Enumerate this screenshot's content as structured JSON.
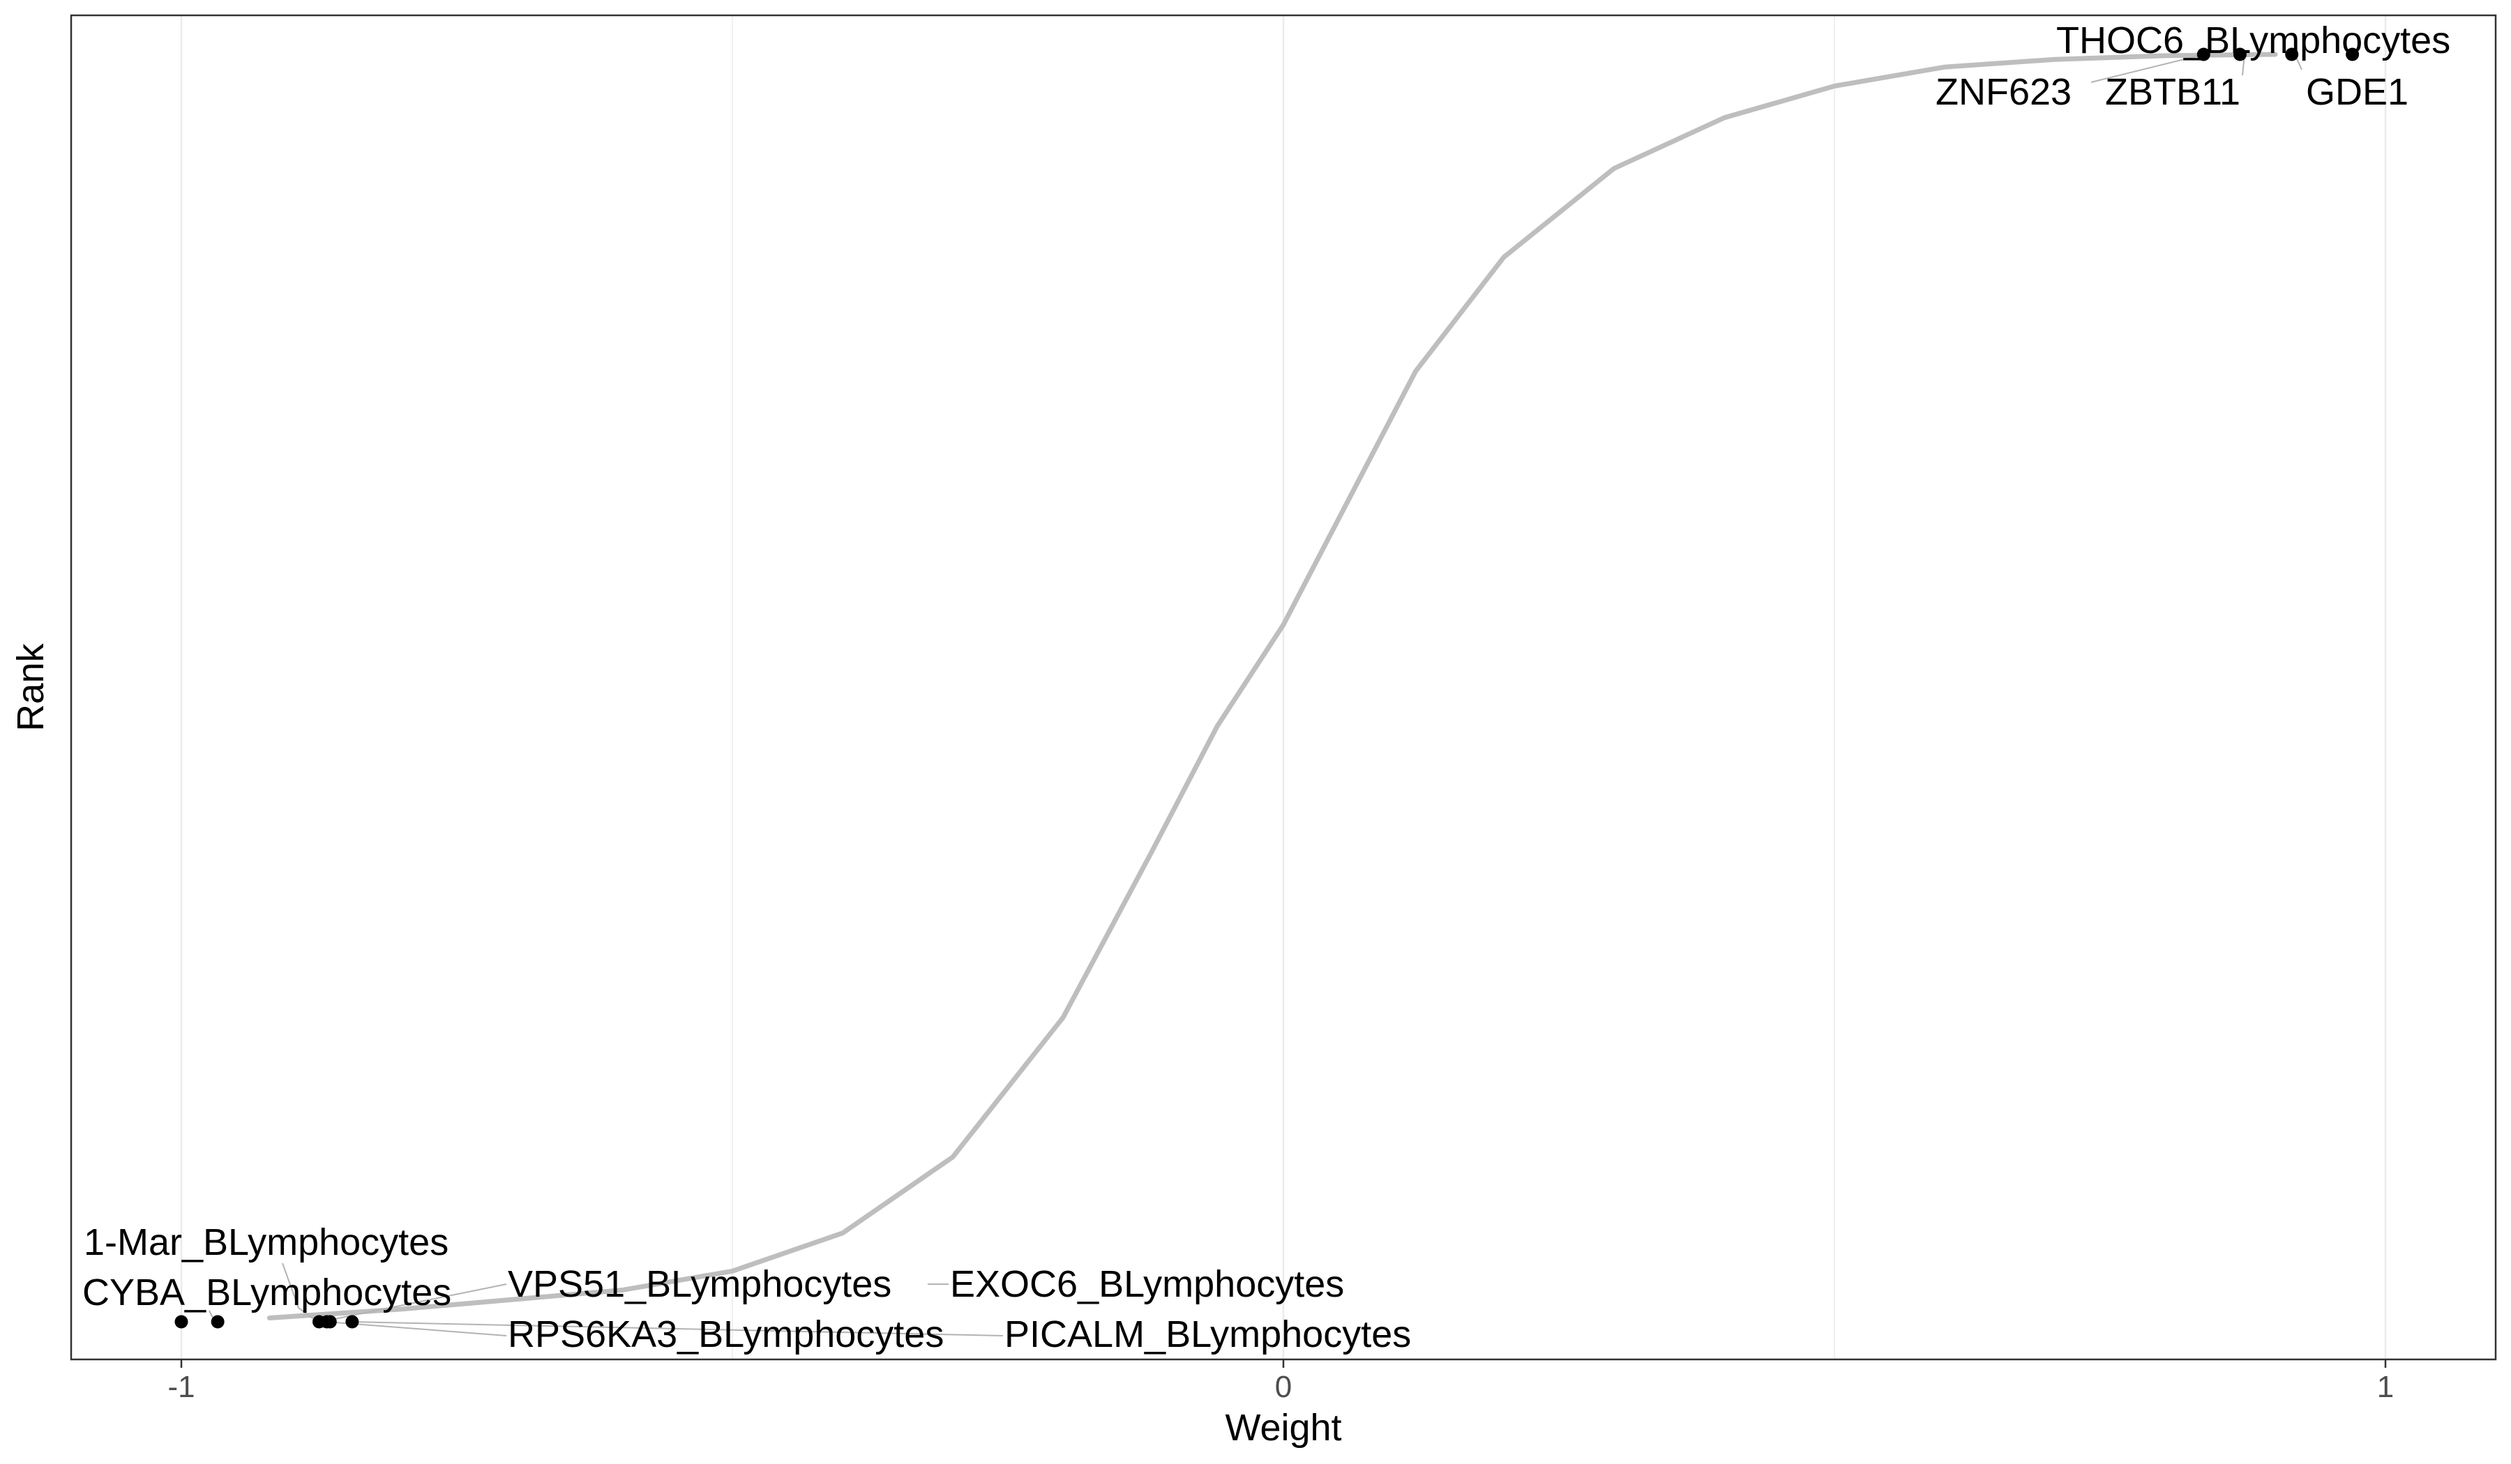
{
  "chart_data": {
    "type": "scatter",
    "title": "",
    "xlabel": "Weight",
    "ylabel": "Rank",
    "xlim": [
      -1.1,
      1.1
    ],
    "x_ticks": [
      {
        "value": -1,
        "label": "-1"
      },
      {
        "value": 0,
        "label": "0"
      },
      {
        "value": 1,
        "label": "1"
      }
    ],
    "x_minor_gridlines": [
      -0.5,
      0.5
    ],
    "y_ticks": [],
    "grid": true,
    "legend": "none",
    "background_curve": {
      "description_values": "sigmoid of rank vs weight",
      "color": "#bebebe",
      "x": [
        -0.92,
        -0.8,
        -0.6,
        -0.5,
        -0.4,
        -0.3,
        -0.2,
        -0.12,
        -0.06,
        0.0,
        0.06,
        0.12,
        0.2,
        0.3,
        0.4,
        0.5,
        0.6,
        0.7,
        0.8,
        0.9
      ],
      "y": [
        0.003,
        0.01,
        0.025,
        0.04,
        0.07,
        0.13,
        0.24,
        0.37,
        0.47,
        0.55,
        0.65,
        0.75,
        0.84,
        0.91,
        0.95,
        0.975,
        0.99,
        0.996,
        0.999,
        1.0
      ]
    },
    "highlighted_points": [
      {
        "label": "1-Mar_BLymphocytes",
        "x": -1.0,
        "y": 0.0
      },
      {
        "label": "CYBA_BLymphocytes",
        "x": -0.967,
        "y": 0.0
      },
      {
        "label": "VPS51_BLymphocytes",
        "x": -0.875,
        "y": 0.0
      },
      {
        "label": "RPS6KA3_BLymphocytes",
        "x": -0.868,
        "y": 0.0
      },
      {
        "label": "EXOC6_BLymphocytes",
        "x": -0.865,
        "y": 0.0
      },
      {
        "label": "PICALM_BLymphocytes",
        "x": -0.845,
        "y": 0.0
      },
      {
        "label": "ZNF623",
        "x": 0.835,
        "y": 1.0
      },
      {
        "label": "ZBTB11",
        "x": 0.868,
        "y": 1.0
      },
      {
        "label": "GDE1",
        "x": 0.915,
        "y": 1.0
      },
      {
        "label": "THOC6_BLymphocytes",
        "x": 0.97,
        "y": 1.0
      }
    ],
    "point_color": "#000000",
    "gridline_color": "#ebebeb"
  }
}
